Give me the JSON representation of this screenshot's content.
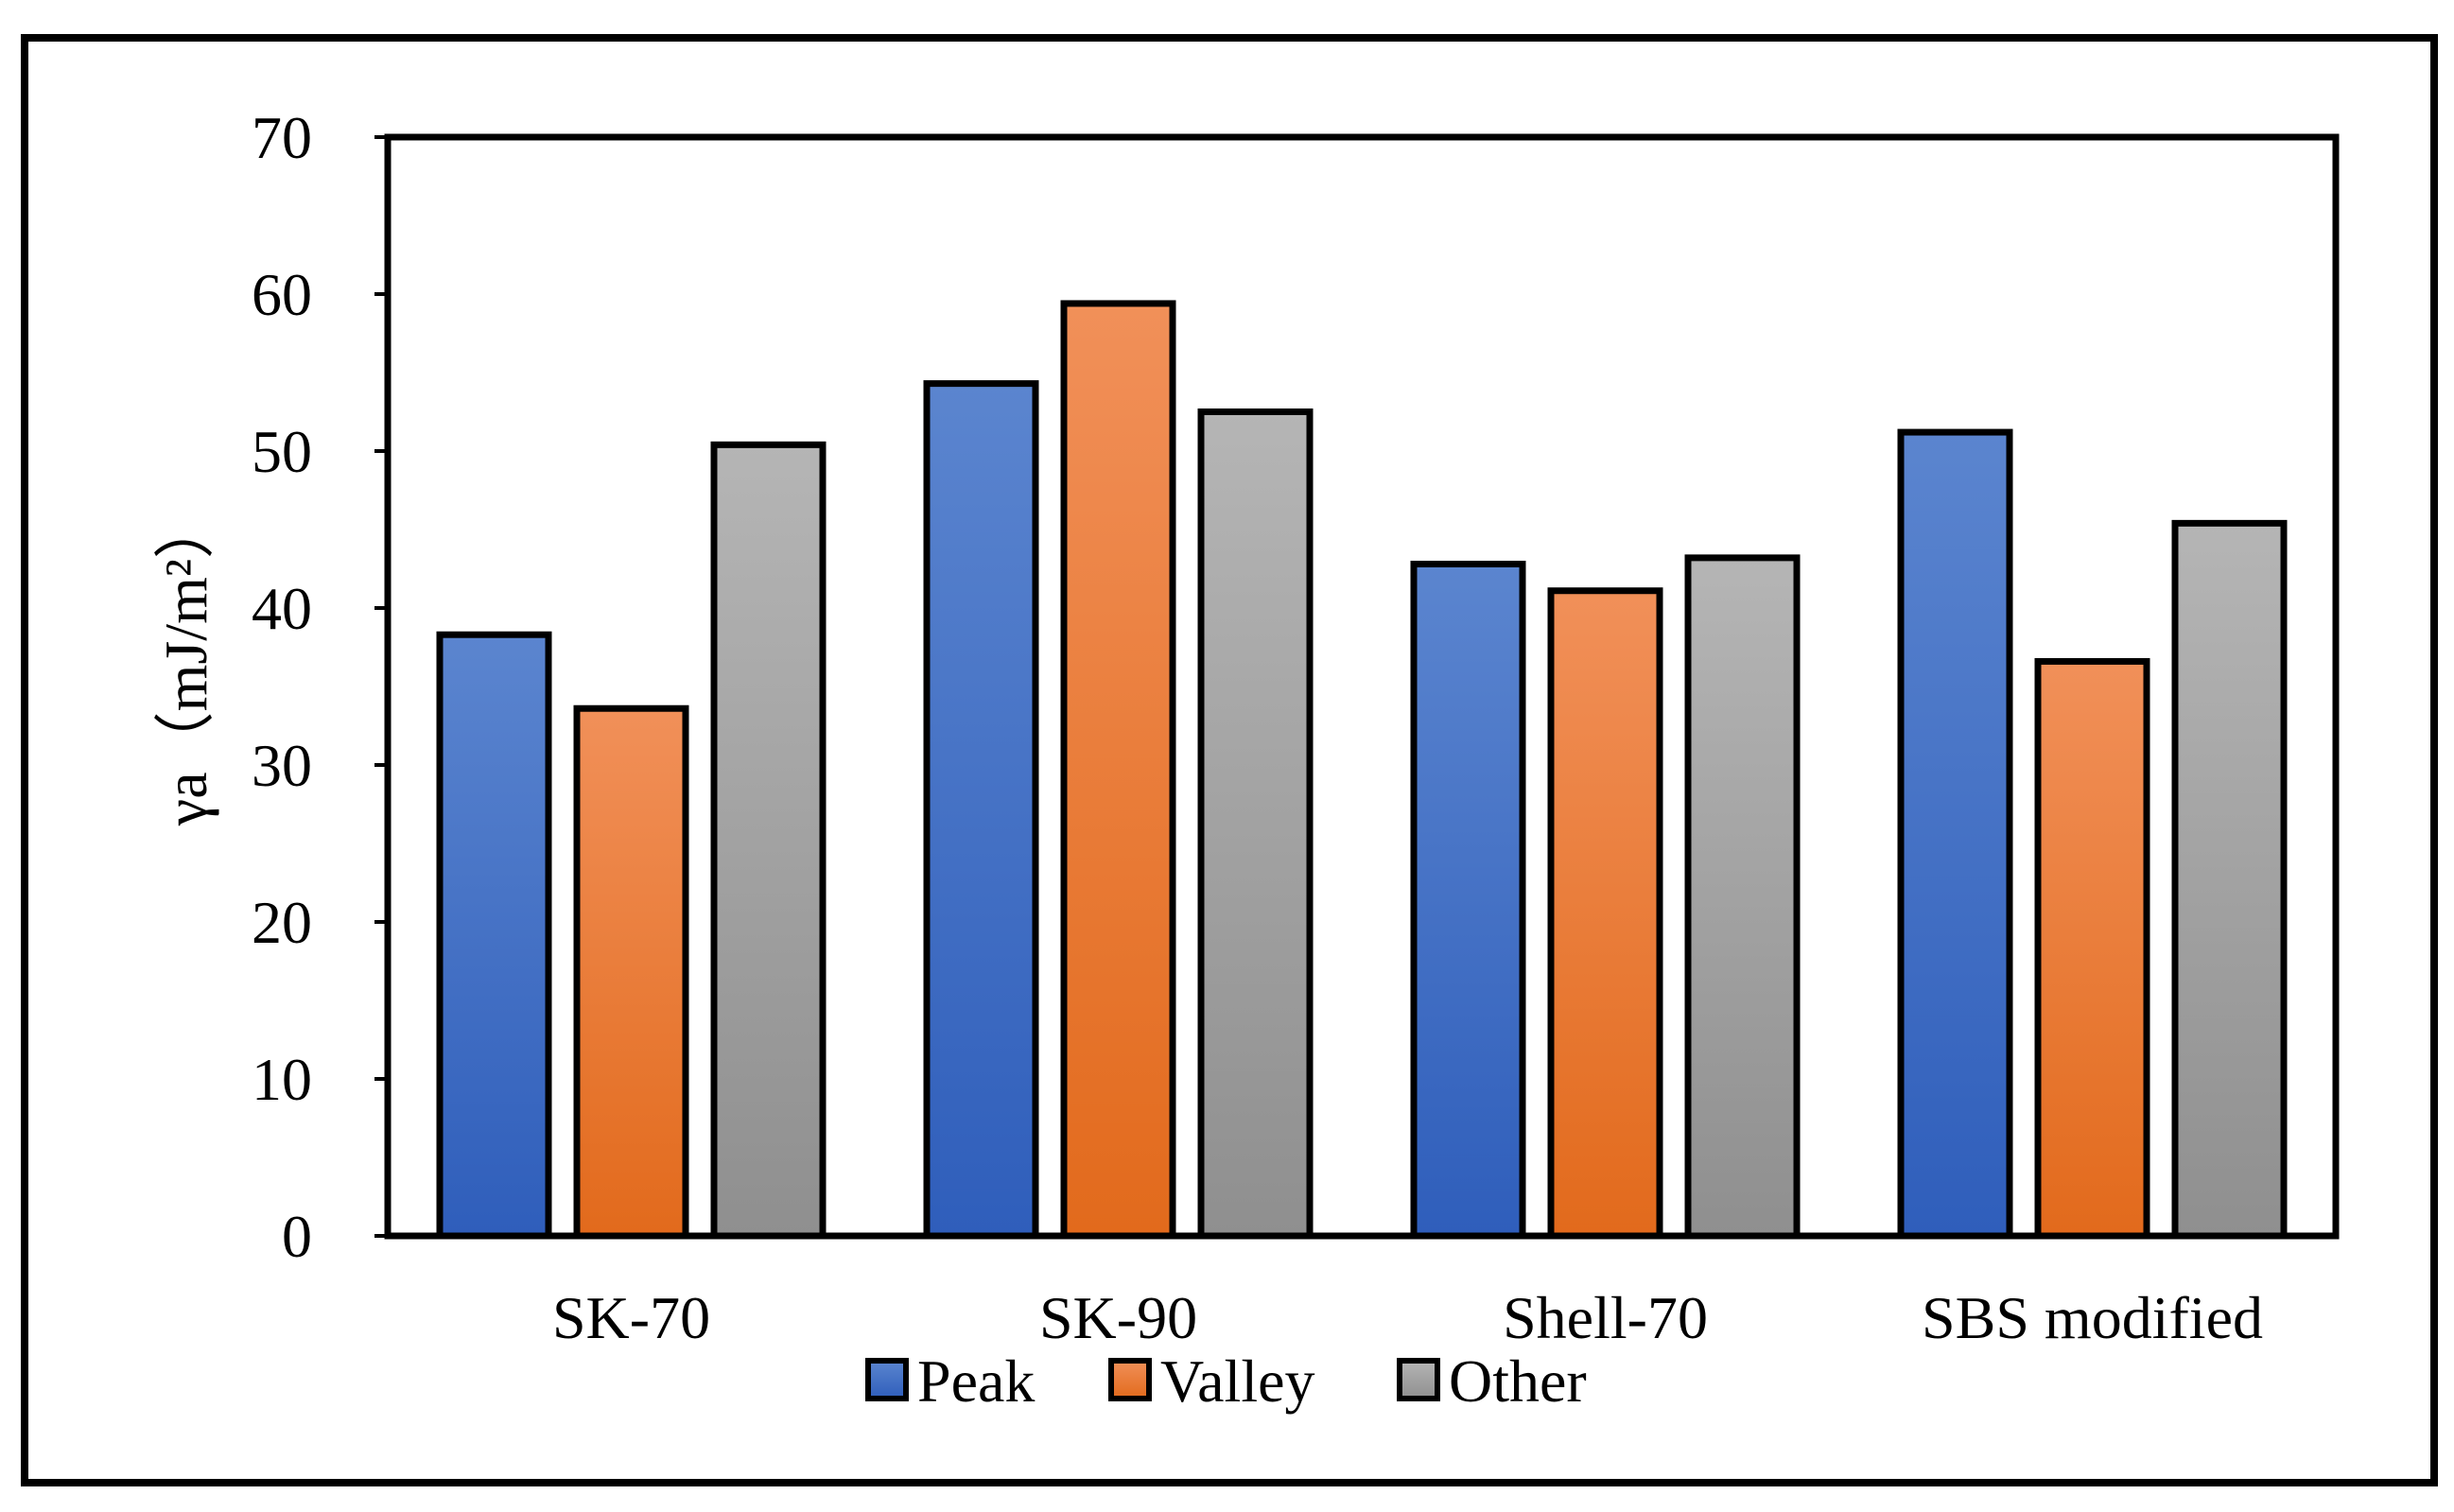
{
  "chart_data": {
    "type": "bar",
    "title": "",
    "xlabel": "",
    "ylabel": "γa（mJ/m²）",
    "ylim": [
      0,
      70
    ],
    "yticks": [
      0,
      10,
      20,
      30,
      40,
      50,
      60,
      70
    ],
    "grid": false,
    "legend_position": "bottom",
    "categories": [
      "SK-70",
      "SK-90",
      "Shell-70",
      "SBS modified"
    ],
    "series": [
      {
        "name": "Peak",
        "color": "#4472C4",
        "values": [
          38.3,
          54.3,
          42.8,
          51.2
        ]
      },
      {
        "name": "Valley",
        "color": "#ED7D31",
        "values": [
          33.6,
          59.4,
          41.1,
          36.6
        ]
      },
      {
        "name": "Other",
        "color": "#A5A5A5",
        "values": [
          50.4,
          52.5,
          43.2,
          45.4
        ]
      }
    ]
  }
}
